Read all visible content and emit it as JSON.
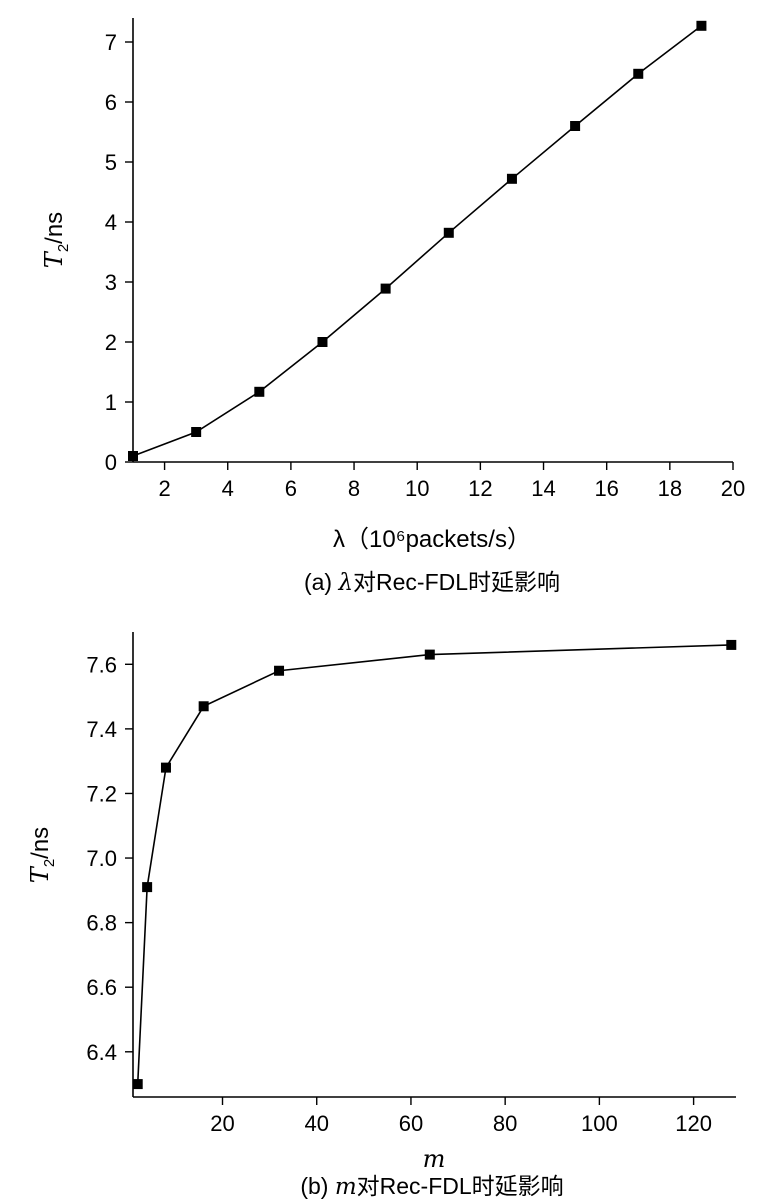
{
  "chart_data": [
    {
      "type": "line",
      "xlabel": "λ（10⁶packets/s）",
      "ylabel": "T2/ns",
      "ylabel_main": "T",
      "ylabel_sub": "2",
      "ylabel_rest": "/ns",
      "caption_prefix": "(a) ",
      "caption_var": "λ",
      "caption_rest": "对Rec-FDL时延影响",
      "xlim": [
        1,
        20
      ],
      "ylim": [
        0,
        7.4
      ],
      "xticks": [
        2,
        4,
        6,
        8,
        10,
        12,
        14,
        16,
        18,
        20
      ],
      "yticks": [
        0,
        1,
        2,
        3,
        4,
        5,
        6,
        7
      ],
      "x": [
        1,
        3,
        5,
        7,
        9,
        11,
        13,
        15,
        17,
        19
      ],
      "y": [
        0.1,
        0.5,
        1.17,
        2.0,
        2.89,
        3.82,
        4.72,
        5.6,
        6.47,
        7.27
      ],
      "marker": "square",
      "grid": false
    },
    {
      "type": "line",
      "xlabel": "m",
      "ylabel": "T2/ns",
      "ylabel_main": "T",
      "ylabel_sub": "2",
      "ylabel_rest": "/ns",
      "caption_prefix": "(b) ",
      "caption_var": "m",
      "caption_rest": "对Rec-FDL时延影响",
      "xlim": [
        1,
        129
      ],
      "ylim": [
        6.26,
        7.7
      ],
      "xticks": [
        20,
        40,
        60,
        80,
        100,
        120
      ],
      "yticks": [
        6.4,
        6.6,
        6.8,
        7.0,
        7.2,
        7.4,
        7.6
      ],
      "ytick_labels": [
        "6.4",
        "6.6",
        "6.8",
        "7.0",
        "7.2",
        "7.4",
        "7.6"
      ],
      "x": [
        2,
        4,
        8,
        16,
        32,
        64,
        128
      ],
      "y": [
        6.3,
        6.91,
        7.28,
        7.47,
        7.58,
        7.63,
        7.66
      ],
      "marker": "square",
      "grid": false
    }
  ]
}
